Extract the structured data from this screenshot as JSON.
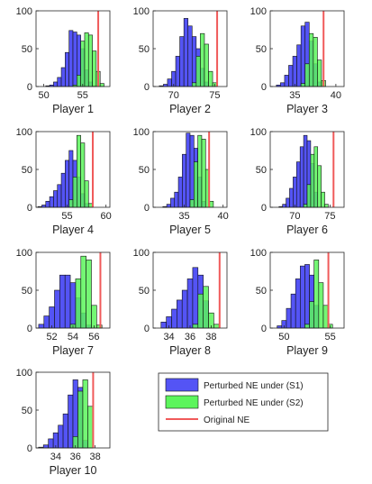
{
  "chart_data": [
    {
      "type": "bar",
      "xlabel": "Player 1",
      "xlim": [
        49,
        58.5
      ],
      "xticks": [
        50,
        55
      ],
      "ylim": [
        0,
        100
      ],
      "yticks": [
        0,
        50,
        100
      ],
      "original_ne": 57.0,
      "series": [
        {
          "name": "Perturbed NE under (S1)",
          "bin_centers": [
            50.5,
            51,
            51.5,
            52,
            52.5,
            53,
            53.5,
            54,
            54.5,
            55,
            55.5,
            56,
            56.5
          ],
          "values": [
            1,
            2,
            6,
            12,
            25,
            45,
            74,
            72,
            68,
            50,
            22,
            6,
            1
          ]
        },
        {
          "name": "Perturbed NE under (S2)",
          "bin_centers": [
            54,
            54.5,
            55,
            55.5,
            56,
            56.5,
            57,
            57.5
          ],
          "values": [
            2,
            15,
            60,
            71,
            68,
            47,
            20,
            4
          ]
        }
      ]
    },
    {
      "type": "bar",
      "xlabel": "Player 2",
      "xlim": [
        67.5,
        76.5
      ],
      "xticks": [
        70,
        75
      ],
      "ylim": [
        0,
        100
      ],
      "yticks": [
        0,
        50,
        100
      ],
      "original_ne": 75.3,
      "series": [
        {
          "name": "Perturbed NE under (S1)",
          "bin_centers": [
            68.5,
            69,
            69.5,
            70,
            70.5,
            71,
            71.5,
            72,
            72.5,
            73,
            73.5,
            74
          ],
          "values": [
            1,
            3,
            10,
            20,
            40,
            66,
            90,
            80,
            66,
            50,
            24,
            6
          ]
        },
        {
          "name": "Perturbed NE under (S2)",
          "bin_centers": [
            72.5,
            73,
            73.5,
            74,
            74.5,
            75
          ],
          "values": [
            5,
            40,
            70,
            56,
            20,
            5
          ]
        }
      ]
    },
    {
      "type": "bar",
      "xlabel": "Player 3",
      "xlim": [
        32,
        41
      ],
      "xticks": [
        35,
        40
      ],
      "ylim": [
        0,
        100
      ],
      "yticks": [
        0,
        50,
        100
      ],
      "original_ne": 38.5,
      "series": [
        {
          "name": "Perturbed NE under (S1)",
          "bin_centers": [
            33,
            33.5,
            34,
            34.5,
            35,
            35.5,
            36,
            36.5,
            37,
            37.5,
            38
          ],
          "values": [
            2,
            5,
            15,
            28,
            40,
            55,
            80,
            85,
            60,
            30,
            6
          ]
        },
        {
          "name": "Perturbed NE under (S2)",
          "bin_centers": [
            36,
            36.5,
            37,
            37.5,
            38,
            38.5
          ],
          "values": [
            4,
            30,
            70,
            65,
            35,
            8
          ]
        }
      ]
    },
    {
      "type": "bar",
      "xlabel": "Player 4",
      "xlim": [
        51,
        60.5
      ],
      "xticks": [
        55,
        60
      ],
      "ylim": [
        0,
        100
      ],
      "yticks": [
        0,
        50,
        100
      ],
      "original_ne": 58.3,
      "series": [
        {
          "name": "Perturbed NE under (S1)",
          "bin_centers": [
            51.5,
            52,
            52.5,
            53,
            53.5,
            54,
            54.5,
            55,
            55.5,
            56,
            56.5,
            57,
            57.5
          ],
          "values": [
            1,
            3,
            8,
            14,
            22,
            30,
            45,
            62,
            75,
            62,
            40,
            18,
            5
          ]
        },
        {
          "name": "Perturbed NE under (S2)",
          "bin_centers": [
            55.5,
            56,
            56.5,
            57,
            57.5,
            58
          ],
          "values": [
            10,
            40,
            95,
            85,
            35,
            5
          ]
        }
      ]
    },
    {
      "type": "bar",
      "xlabel": "Player 5",
      "xlim": [
        31,
        40.5
      ],
      "xticks": [
        35,
        40
      ],
      "ylim": [
        0,
        100
      ],
      "yticks": [
        0,
        50,
        100
      ],
      "original_ne": 38.2,
      "series": [
        {
          "name": "Perturbed NE under (S1)",
          "bin_centers": [
            32.5,
            33,
            33.5,
            34,
            34.5,
            35,
            35.5,
            36,
            36.5,
            37,
            37.5
          ],
          "values": [
            1,
            4,
            12,
            20,
            40,
            70,
            98,
            95,
            78,
            40,
            8
          ]
        },
        {
          "name": "Perturbed NE under (S2)",
          "bin_centers": [
            36,
            36.5,
            37,
            37.5,
            38,
            38.5
          ],
          "values": [
            10,
            60,
            95,
            90,
            50,
            8
          ]
        }
      ]
    },
    {
      "type": "bar",
      "xlabel": "Player 6",
      "xlim": [
        66.5,
        77
      ],
      "xticks": [
        70,
        75
      ],
      "ylim": [
        0,
        100
      ],
      "yticks": [
        0,
        50,
        100
      ],
      "original_ne": 75.5,
      "series": [
        {
          "name": "Perturbed NE under (S1)",
          "bin_centers": [
            68,
            68.5,
            69,
            69.5,
            70,
            70.5,
            71,
            71.5,
            72,
            72.5,
            73
          ],
          "values": [
            1,
            4,
            12,
            25,
            40,
            60,
            80,
            95,
            88,
            58,
            20
          ]
        },
        {
          "name": "Perturbed NE under (S2)",
          "bin_centers": [
            71.5,
            72,
            72.5,
            73,
            73.5,
            74,
            74.5
          ],
          "values": [
            4,
            30,
            70,
            80,
            55,
            20,
            4
          ]
        }
      ]
    },
    {
      "type": "bar",
      "xlabel": "Player 7",
      "xlim": [
        50.5,
        57.5
      ],
      "xticks": [
        52,
        54,
        56
      ],
      "ylim": [
        0,
        100
      ],
      "yticks": [
        0,
        50,
        100
      ],
      "original_ne": 56.6,
      "series": [
        {
          "name": "Perturbed NE under (S1)",
          "bin_centers": [
            51,
            51.5,
            52,
            52.5,
            53,
            53.5,
            54,
            54.5,
            55,
            55.5
          ],
          "values": [
            5,
            16,
            28,
            50,
            70,
            70,
            60,
            40,
            20,
            4
          ]
        },
        {
          "name": "Perturbed NE under (S2)",
          "bin_centers": [
            54,
            54.5,
            55,
            55.5,
            56,
            56.5
          ],
          "values": [
            5,
            65,
            95,
            90,
            30,
            4
          ]
        }
      ]
    },
    {
      "type": "bar",
      "xlabel": "Player 8",
      "xlim": [
        32.5,
        39.5
      ],
      "xticks": [
        34,
        36,
        38
      ],
      "ylim": [
        0,
        100
      ],
      "yticks": [
        0,
        50,
        100
      ],
      "original_ne": 38.8,
      "series": [
        {
          "name": "Perturbed NE under (S1)",
          "bin_centers": [
            33.5,
            34,
            34.5,
            35,
            35.5,
            36,
            36.5,
            37,
            37.5
          ],
          "values": [
            8,
            15,
            25,
            37,
            50,
            65,
            80,
            70,
            36
          ]
        },
        {
          "name": "Perturbed NE under (S2)",
          "bin_centers": [
            36.5,
            37,
            37.5,
            38,
            38.5
          ],
          "values": [
            5,
            45,
            55,
            20,
            5
          ]
        }
      ]
    },
    {
      "type": "bar",
      "xlabel": "Player 9",
      "xlim": [
        48.5,
        56.5
      ],
      "xticks": [
        50,
        55
      ],
      "ylim": [
        0,
        100
      ],
      "yticks": [
        0,
        50,
        100
      ],
      "original_ne": 54.8,
      "series": [
        {
          "name": "Perturbed NE under (S1)",
          "bin_centers": [
            49.5,
            50,
            50.5,
            51,
            51.5,
            52,
            52.5,
            53,
            53.5
          ],
          "values": [
            3,
            10,
            26,
            45,
            65,
            82,
            84,
            70,
            30
          ]
        },
        {
          "name": "Perturbed NE under (S2)",
          "bin_centers": [
            52.5,
            53,
            53.5,
            54,
            54.5,
            55
          ],
          "values": [
            5,
            35,
            90,
            60,
            30,
            5
          ]
        }
      ]
    },
    {
      "type": "bar",
      "xlabel": "Player 10",
      "xlim": [
        32,
        39.5
      ],
      "xticks": [
        34,
        36,
        38
      ],
      "ylim": [
        0,
        100
      ],
      "yticks": [
        0,
        50,
        100
      ],
      "original_ne": 37.8,
      "series": [
        {
          "name": "Perturbed NE under (S1)",
          "bin_centers": [
            32.5,
            33,
            33.5,
            34,
            34.5,
            35,
            35.5,
            36,
            36.5,
            37
          ],
          "values": [
            1,
            4,
            12,
            20,
            30,
            45,
            70,
            90,
            80,
            10
          ]
        },
        {
          "name": "Perturbed NE under (S2)",
          "bin_centers": [
            36,
            36.5,
            37,
            37.5
          ],
          "values": [
            15,
            75,
            90,
            55
          ]
        }
      ]
    }
  ],
  "legend": {
    "s1_label": "Perturbed NE under (S1)",
    "s2_label": "Perturbed NE under (S2)",
    "ne_label": "Original NE"
  },
  "colors": {
    "s1": "#5454f5",
    "s2": "#5cf55c",
    "overlap": "#3a6f3a",
    "ne_line": "#f05a5a"
  }
}
